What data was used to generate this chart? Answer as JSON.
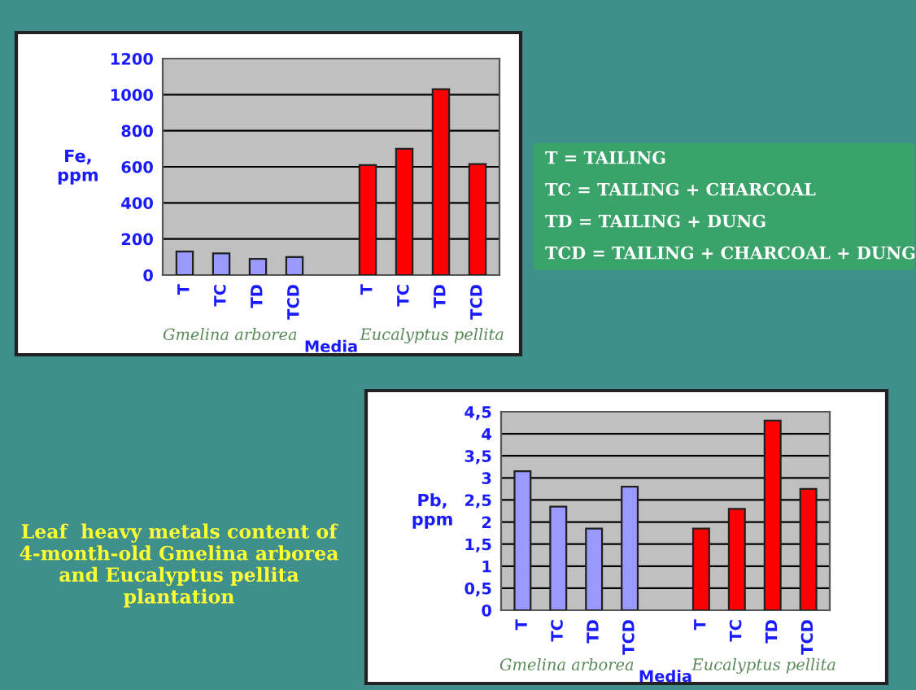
{
  "chart_data": [
    {
      "type": "bar",
      "ylabel": "Fe,\nppm",
      "xlabel": "Media",
      "categories": [
        "T",
        "TC",
        "TD",
        "TCD",
        null,
        "T",
        "TC",
        "TD",
        "TCD"
      ],
      "series": [
        {
          "values": [
            130,
            120,
            90,
            100,
            null,
            610,
            700,
            1030,
            615
          ],
          "colors": [
            "#9999ff",
            "#9999ff",
            "#9999ff",
            "#9999ff",
            null,
            "#ff0000",
            "#ff0000",
            "#ff0000",
            "#ff0000"
          ]
        }
      ],
      "ylim": [
        0,
        1200
      ],
      "yticks": [
        0,
        200,
        400,
        600,
        800,
        1000,
        1200
      ],
      "grid": "y",
      "annotations": [
        "Gmelina arborea",
        "Eucalyptus pellita"
      ]
    },
    {
      "type": "other",
      "annotations": [
        "T = TAILING",
        "TC = TAILING + CHARCOAL",
        "TD = TAILING + DUNG",
        "TCD = TAILING + CHARCOAL + DUNG"
      ]
    },
    {
      "type": "bar",
      "ylabel": "Pb,\nppm",
      "xlabel": "Media",
      "categories": [
        "T",
        "TC",
        "TD",
        "TCD",
        null,
        "T",
        "TC",
        "TD",
        "TCD"
      ],
      "series": [
        {
          "values": [
            3.15,
            2.35,
            1.85,
            2.8,
            null,
            1.85,
            2.3,
            4.3,
            2.75
          ],
          "colors": [
            "#9999ff",
            "#9999ff",
            "#9999ff",
            "#9999ff",
            null,
            "#ff0000",
            "#ff0000",
            "#ff0000",
            "#ff0000"
          ]
        }
      ],
      "ylim": [
        0,
        4.5
      ],
      "yticks": [
        0,
        {
          "value": 0.5,
          "label": "0,5"
        },
        1,
        {
          "value": 1.5,
          "label": "1,5"
        },
        2,
        {
          "value": 2.5,
          "label": "2,5"
        },
        3,
        {
          "value": 3.5,
          "label": "3,5"
        },
        4,
        {
          "value": 4.5,
          "label": "4,5"
        }
      ],
      "grid": "y",
      "annotations": [
        "Gmelina arborea",
        "Eucalyptus pellita"
      ]
    },
    {
      "type": "other",
      "annotations": [
        "Leaf  heavy metals content of 4-month-old Gmelina arborea and Eucalyptus pellita plantation"
      ]
    }
  ]
}
